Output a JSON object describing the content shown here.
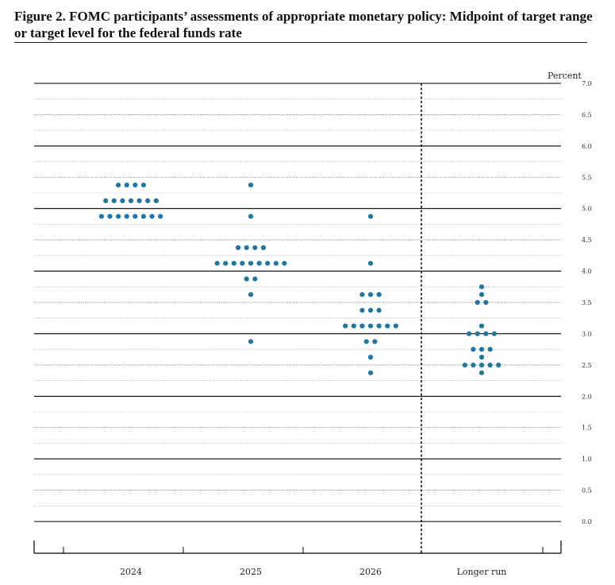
{
  "figure": {
    "title": "Figure 2.  FOMC participants’ assessments of appropriate monetary policy: Midpoint of target range or target level for the federal funds rate"
  },
  "chart_data": {
    "type": "scatter",
    "title": "Figure 2.  FOMC participants’ assessments of appropriate monetary policy: Midpoint of target range or target level for the federal funds rate",
    "ylabel": "Percent",
    "ylim": [
      0.0,
      7.0
    ],
    "yticks": [
      "0.0",
      "0.5",
      "1.0",
      "1.5",
      "2.0",
      "2.5",
      "3.0",
      "3.5",
      "4.0",
      "4.5",
      "5.0",
      "5.5",
      "6.0",
      "6.5",
      "7.0"
    ],
    "categories": [
      "2024",
      "2025",
      "2026",
      "Longer run"
    ],
    "dot_color": "#1f77a2",
    "projections": [
      {
        "category": "2024",
        "points": [
          {
            "rate": 5.375,
            "count": 4
          },
          {
            "rate": 5.125,
            "count": 7
          },
          {
            "rate": 4.875,
            "count": 8
          }
        ]
      },
      {
        "category": "2025",
        "points": [
          {
            "rate": 5.375,
            "count": 1
          },
          {
            "rate": 4.875,
            "count": 1
          },
          {
            "rate": 4.375,
            "count": 4
          },
          {
            "rate": 4.125,
            "count": 9
          },
          {
            "rate": 3.875,
            "count": 2
          },
          {
            "rate": 3.625,
            "count": 1
          },
          {
            "rate": 2.875,
            "count": 1
          }
        ]
      },
      {
        "category": "2026",
        "points": [
          {
            "rate": 4.875,
            "count": 1
          },
          {
            "rate": 4.125,
            "count": 1
          },
          {
            "rate": 3.625,
            "count": 3
          },
          {
            "rate": 3.375,
            "count": 3
          },
          {
            "rate": 3.125,
            "count": 7
          },
          {
            "rate": 2.875,
            "count": 2
          },
          {
            "rate": 2.625,
            "count": 1
          },
          {
            "rate": 2.375,
            "count": 1
          }
        ]
      },
      {
        "category": "Longer run",
        "points": [
          {
            "rate": 3.75,
            "count": 1
          },
          {
            "rate": 3.625,
            "count": 1
          },
          {
            "rate": 3.5,
            "count": 2
          },
          {
            "rate": 3.125,
            "count": 1
          },
          {
            "rate": 3.0,
            "count": 4
          },
          {
            "rate": 2.75,
            "count": 3
          },
          {
            "rate": 2.625,
            "count": 1
          },
          {
            "rate": 2.5,
            "count": 5
          },
          {
            "rate": 2.375,
            "count": 1
          }
        ]
      }
    ]
  }
}
